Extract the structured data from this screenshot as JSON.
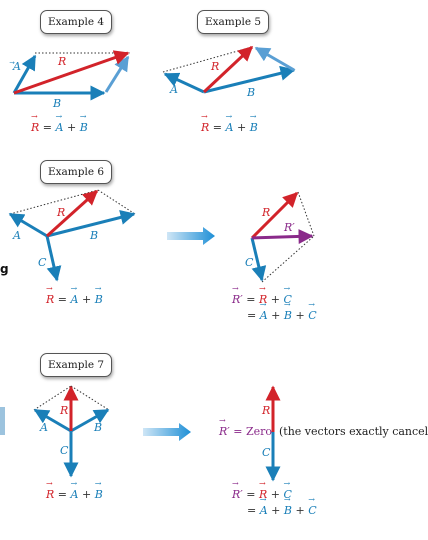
{
  "examples": {
    "ex4": {
      "label": "Example 4",
      "A": "A",
      "B": "B",
      "R": "R",
      "eq_lhs": "R",
      "eq_mid": "=",
      "eq_a": "A",
      "eq_plus": "+",
      "eq_b": "B"
    },
    "ex5": {
      "label": "Example 5",
      "A": "A",
      "B": "B",
      "R": "R",
      "eq_lhs": "R",
      "eq_mid": "=",
      "eq_a": "A",
      "eq_plus": "+",
      "eq_b": "B"
    },
    "ex6": {
      "label": "Example 6",
      "A": "A",
      "B": "B",
      "C": "C",
      "R": "R",
      "eq_lhs": "R",
      "eq_mid": "=",
      "eq_a": "A",
      "eq_plus": "+",
      "eq_b": "B",
      "right_R": "R",
      "right_Rp": "R′",
      "right_C": "C",
      "eq2_line1_lhs": "R′",
      "eq2_line1_eq": "=",
      "eq2_line1_r": "R",
      "eq2_line1_plus": "+",
      "eq2_line1_c": "C",
      "eq2_line2_eq": "=",
      "eq2_line2_a": "A",
      "eq2_line2_plus1": "+",
      "eq2_line2_b": "B",
      "eq2_line2_plus2": "+",
      "eq2_line2_c": "C"
    },
    "ex7": {
      "label": "Example 7",
      "A": "A",
      "B": "B",
      "C": "C",
      "R": "R",
      "eq_lhs": "R",
      "eq_mid": "=",
      "eq_a": "A",
      "eq_plus": "+",
      "eq_b": "B",
      "right_R": "R",
      "right_C": "C",
      "zero_lhs": "R′",
      "zero_eq": "= Zero",
      "zero_note": "(the vectors exactly cancel)",
      "eq2_line1_lhs": "R′",
      "eq2_line1_eq": "=",
      "eq2_line1_r": "R",
      "eq2_line1_plus": "+",
      "eq2_line1_c": "C",
      "eq2_line2_eq": "=",
      "eq2_line2_a": "A",
      "eq2_line2_plus1": "+",
      "eq2_line2_b": "B",
      "eq2_line2_plus2": "+",
      "eq2_line2_c": "C"
    }
  },
  "side": {
    "letter": "g"
  },
  "colors": {
    "red": "#d2232a",
    "blue": "#1a7fb8",
    "lightblue": "#5a9fd4",
    "purple": "#8a2a8a",
    "arrow": "#2a9ad8"
  }
}
